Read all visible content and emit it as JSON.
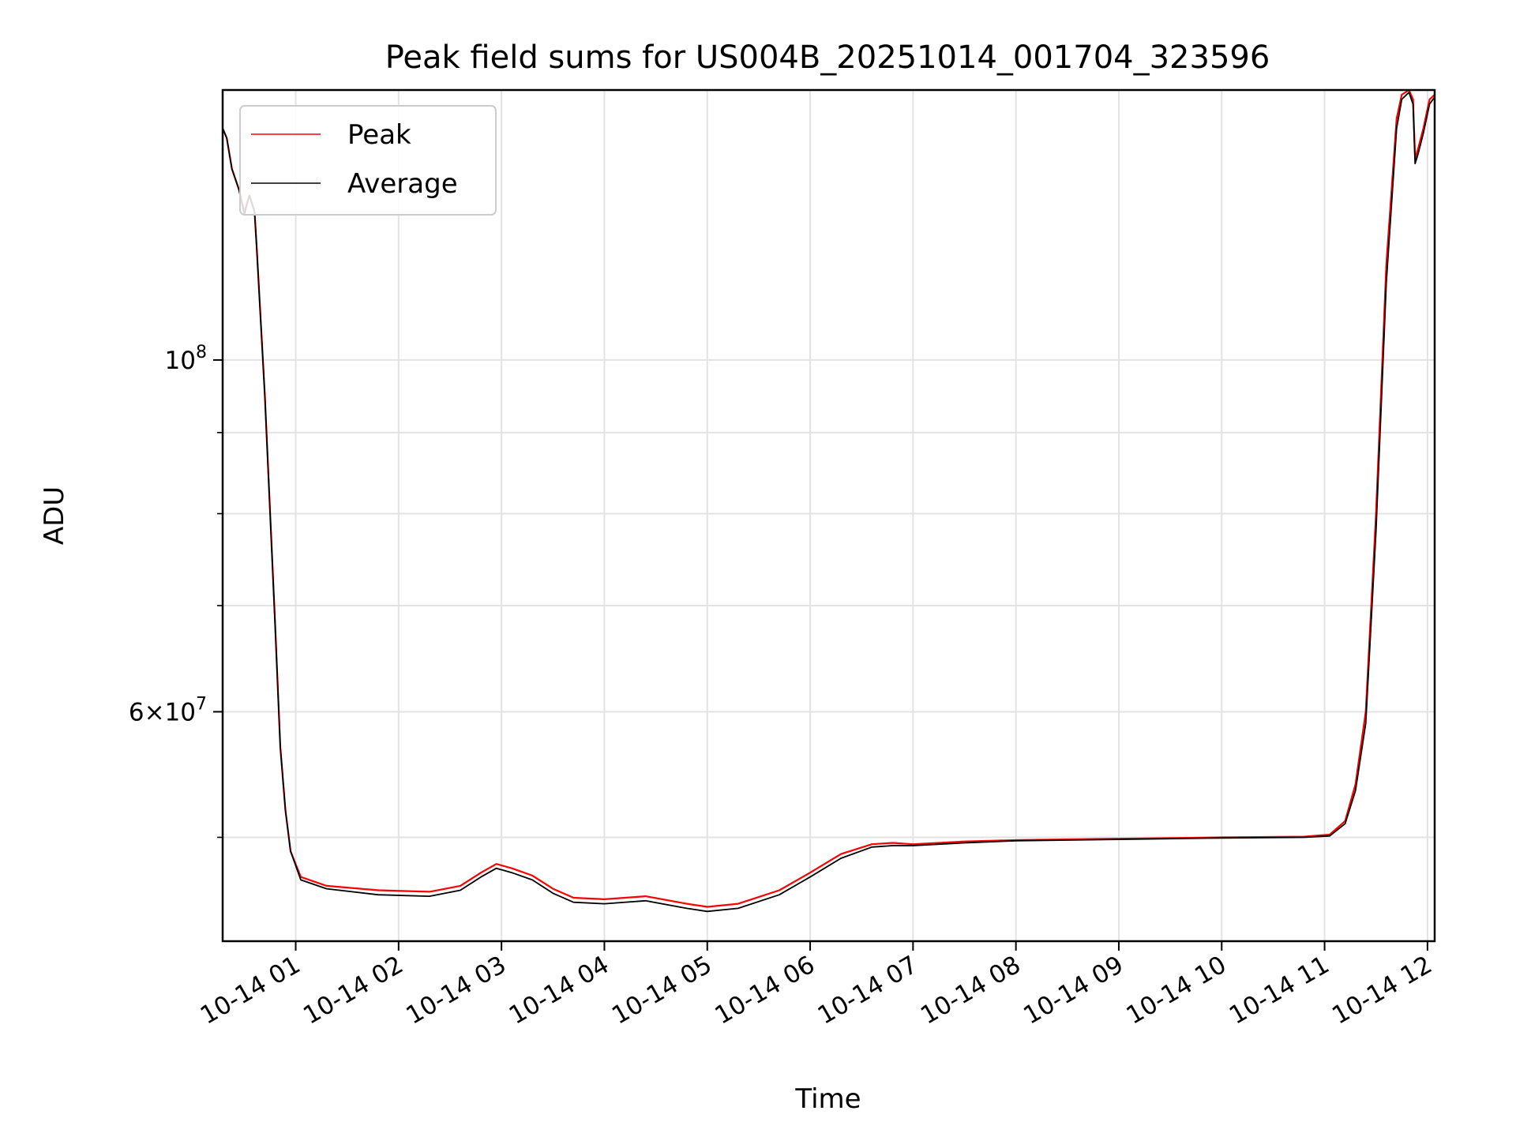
{
  "chart_data": {
    "type": "line",
    "title": "Peak field sums for US004B_20251014_001704_323596",
    "xlabel": "Time",
    "ylabel": "ADU",
    "x_unit": "hours after 2025-10-14 00:00",
    "xlim": [
      0.29,
      12.07
    ],
    "ylim": [
      43000000,
      148000000
    ],
    "yscale": "log",
    "grid": true,
    "legend_position": "upper-left",
    "x_ticks": [
      {
        "value": 1,
        "label": "10-14 01"
      },
      {
        "value": 2,
        "label": "10-14 02"
      },
      {
        "value": 3,
        "label": "10-14 03"
      },
      {
        "value": 4,
        "label": "10-14 04"
      },
      {
        "value": 5,
        "label": "10-14 05"
      },
      {
        "value": 6,
        "label": "10-14 06"
      },
      {
        "value": 7,
        "label": "10-14 07"
      },
      {
        "value": 8,
        "label": "10-14 08"
      },
      {
        "value": 9,
        "label": "10-14 09"
      },
      {
        "value": 10,
        "label": "10-14 10"
      },
      {
        "value": 11,
        "label": "10-14 11"
      },
      {
        "value": 12,
        "label": "10-14 12"
      }
    ],
    "y_ticks_major": [
      {
        "value": 100000000,
        "base": "10",
        "exp": "8",
        "mantissa": ""
      },
      {
        "value": 60000000,
        "base": "10",
        "exp": "7",
        "mantissa": "6"
      }
    ],
    "y_ticks_minor": [
      50000000,
      70000000,
      80000000,
      90000000
    ],
    "series": [
      {
        "name": "Peak",
        "color": "#ff0000",
        "x": [
          0.29,
          0.33,
          0.38,
          0.45,
          0.5,
          0.55,
          0.6,
          0.62,
          0.7,
          0.8,
          0.85,
          0.9,
          0.95,
          1.05,
          1.3,
          1.8,
          2.3,
          2.6,
          2.8,
          2.95,
          3.1,
          3.3,
          3.5,
          3.7,
          4.0,
          4.4,
          4.8,
          5.0,
          5.3,
          5.7,
          6.0,
          6.3,
          6.6,
          6.8,
          7.0,
          7.5,
          8.0,
          9.0,
          10.0,
          10.8,
          11.05,
          11.2,
          11.3,
          11.4,
          11.5,
          11.6,
          11.7,
          11.75,
          11.82,
          11.86,
          11.88,
          11.91,
          11.96,
          12.02,
          12.07
        ],
        "values": [
          140000000,
          138000000,
          132000000,
          128000000,
          124000000,
          127000000,
          124000000,
          118000000,
          95000000,
          68000000,
          57000000,
          52000000,
          49000000,
          47200000,
          46600000,
          46300000,
          46200000,
          46600000,
          47500000,
          48100000,
          47800000,
          47300000,
          46400000,
          45800000,
          45700000,
          45900000,
          45400000,
          45200000,
          45400000,
          46300000,
          47500000,
          48800000,
          49500000,
          49600000,
          49500000,
          49700000,
          49800000,
          49900000,
          50000000,
          50050000,
          50200000,
          51200000,
          54000000,
          60000000,
          80000000,
          115000000,
          142000000,
          147000000,
          148000000,
          146000000,
          134000000,
          136000000,
          140000000,
          146000000,
          147000000
        ]
      },
      {
        "name": "Average",
        "color": "#000000",
        "x": [
          0.29,
          0.33,
          0.38,
          0.45,
          0.5,
          0.55,
          0.6,
          0.62,
          0.7,
          0.8,
          0.85,
          0.9,
          0.95,
          1.05,
          1.3,
          1.8,
          2.3,
          2.6,
          2.8,
          2.95,
          3.1,
          3.3,
          3.5,
          3.7,
          4.0,
          4.4,
          4.8,
          5.0,
          5.3,
          5.7,
          6.0,
          6.3,
          6.6,
          6.8,
          7.0,
          7.5,
          8.0,
          9.0,
          10.0,
          10.8,
          11.05,
          11.2,
          11.3,
          11.4,
          11.5,
          11.6,
          11.7,
          11.75,
          11.82,
          11.86,
          11.88,
          11.91,
          11.96,
          12.02,
          12.07
        ],
        "values": [
          140000000,
          138000000,
          132000000,
          128000000,
          123500000,
          127000000,
          124000000,
          118000000,
          95000000,
          68000000,
          57000000,
          52000000,
          49000000,
          47000000,
          46400000,
          46000000,
          45900000,
          46300000,
          47200000,
          47800000,
          47500000,
          47000000,
          46100000,
          45500000,
          45400000,
          45600000,
          45100000,
          44900000,
          45100000,
          46000000,
          47200000,
          48500000,
          49300000,
          49400000,
          49400000,
          49600000,
          49750000,
          49850000,
          49950000,
          50000000,
          50100000,
          51000000,
          53500000,
          59000000,
          78000000,
          112000000,
          140000000,
          146000000,
          147500000,
          145000000,
          133000000,
          135000000,
          139000000,
          145000000,
          146500000
        ]
      }
    ]
  }
}
